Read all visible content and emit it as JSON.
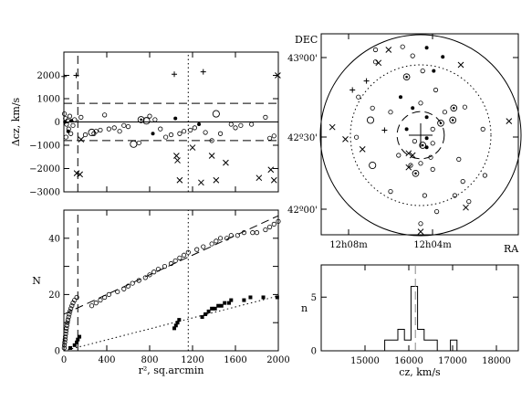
{
  "chart_data": [
    {
      "id": "velocity",
      "type": "scatter",
      "ylabel": "Δcz, km/s",
      "ylim": [
        -3000,
        3000
      ],
      "xlim": [
        0,
        2000
      ],
      "yticks": [
        -3000,
        -2000,
        -1000,
        0,
        1000,
        2000
      ],
      "ytick_labels": [
        "−3000",
        "−2000",
        "−1000",
        "0",
        "1000",
        "2000"
      ],
      "hlines": [
        {
          "y": 0,
          "style": "solid"
        },
        {
          "y": 800,
          "style": "dashed"
        },
        {
          "y": -800,
          "style": "dashed"
        }
      ],
      "vlines": [
        {
          "x": 130,
          "style": "dashed"
        },
        {
          "x": 1160,
          "style": "dotted"
        }
      ],
      "points": [
        {
          "x": 2,
          "y": 1950,
          "m": "plus"
        },
        {
          "x": 115,
          "y": 2000,
          "m": "plus"
        },
        {
          "x": 1030,
          "y": 2050,
          "m": "plus"
        },
        {
          "x": 1300,
          "y": 2150,
          "m": "plus"
        },
        {
          "x": 5,
          "y": 350,
          "m": "circle"
        },
        {
          "x": 15,
          "y": 150,
          "m": "circle"
        },
        {
          "x": 25,
          "y": -100,
          "m": "circle"
        },
        {
          "x": 35,
          "y": 50,
          "m": "circle"
        },
        {
          "x": 45,
          "y": -300,
          "m": "circle"
        },
        {
          "x": 55,
          "y": 250,
          "m": "circle"
        },
        {
          "x": 65,
          "y": -500,
          "m": "circle"
        },
        {
          "x": 85,
          "y": -150,
          "m": "circle"
        },
        {
          "x": 100,
          "y": 100,
          "m": "circle"
        },
        {
          "x": 20,
          "y": -650,
          "m": "circle"
        },
        {
          "x": 160,
          "y": 200,
          "m": "circle"
        },
        {
          "x": 200,
          "y": -550,
          "m": "circle"
        },
        {
          "x": 260,
          "y": -450,
          "m": "big"
        },
        {
          "x": 280,
          "y": -500,
          "m": "circle"
        },
        {
          "x": 300,
          "y": -400,
          "m": "circle"
        },
        {
          "x": 340,
          "y": -350,
          "m": "circle"
        },
        {
          "x": 380,
          "y": 300,
          "m": "circle"
        },
        {
          "x": 420,
          "y": -300,
          "m": "circle"
        },
        {
          "x": 470,
          "y": -250,
          "m": "circle"
        },
        {
          "x": 520,
          "y": -400,
          "m": "circle"
        },
        {
          "x": 560,
          "y": -150,
          "m": "circle"
        },
        {
          "x": 600,
          "y": -200,
          "m": "circle"
        },
        {
          "x": 650,
          "y": -950,
          "m": "big"
        },
        {
          "x": 700,
          "y": -900,
          "m": "circle"
        },
        {
          "x": 720,
          "y": 100,
          "m": "target"
        },
        {
          "x": 770,
          "y": 50,
          "m": "big"
        },
        {
          "x": 800,
          "y": 250,
          "m": "circle"
        },
        {
          "x": 830,
          "y": -500,
          "m": "dot"
        },
        {
          "x": 850,
          "y": 100,
          "m": "circle"
        },
        {
          "x": 900,
          "y": -300,
          "m": "circle"
        },
        {
          "x": 950,
          "y": -650,
          "m": "circle"
        },
        {
          "x": 1000,
          "y": -550,
          "m": "circle"
        },
        {
          "x": 1040,
          "y": 150,
          "m": "dot"
        },
        {
          "x": 1080,
          "y": -500,
          "m": "circle"
        },
        {
          "x": 1120,
          "y": -400,
          "m": "circle"
        },
        {
          "x": 1180,
          "y": -350,
          "m": "circle"
        },
        {
          "x": 1220,
          "y": -250,
          "m": "circle"
        },
        {
          "x": 1260,
          "y": -100,
          "m": "dot"
        },
        {
          "x": 1320,
          "y": -450,
          "m": "circle"
        },
        {
          "x": 1380,
          "y": -800,
          "m": "circle"
        },
        {
          "x": 1420,
          "y": 350,
          "m": "big"
        },
        {
          "x": 1460,
          "y": -500,
          "m": "circle"
        },
        {
          "x": 1560,
          "y": -100,
          "m": "circle"
        },
        {
          "x": 1600,
          "y": -250,
          "m": "circle"
        },
        {
          "x": 1650,
          "y": -150,
          "m": "circle"
        },
        {
          "x": 1750,
          "y": -100,
          "m": "circle"
        },
        {
          "x": 1880,
          "y": 200,
          "m": "circle"
        },
        {
          "x": 1920,
          "y": -700,
          "m": "circle"
        },
        {
          "x": 1960,
          "y": -600,
          "m": "circle"
        },
        {
          "x": 10,
          "y": 0,
          "m": "dot"
        },
        {
          "x": 40,
          "y": -400,
          "m": "dot"
        },
        {
          "x": 70,
          "y": 50,
          "m": "dot"
        },
        {
          "x": 120,
          "y": -2200,
          "m": "cross"
        },
        {
          "x": 150,
          "y": -2250,
          "m": "cross"
        },
        {
          "x": 160,
          "y": -750,
          "m": "cross"
        },
        {
          "x": 1050,
          "y": -1450,
          "m": "cross"
        },
        {
          "x": 1060,
          "y": -1650,
          "m": "cross"
        },
        {
          "x": 1080,
          "y": -2500,
          "m": "cross"
        },
        {
          "x": 1200,
          "y": -1100,
          "m": "cross"
        },
        {
          "x": 1280,
          "y": -2600,
          "m": "cross"
        },
        {
          "x": 1380,
          "y": -1450,
          "m": "cross"
        },
        {
          "x": 1420,
          "y": -2500,
          "m": "cross"
        },
        {
          "x": 1510,
          "y": -1750,
          "m": "cross"
        },
        {
          "x": 1820,
          "y": -2400,
          "m": "cross"
        },
        {
          "x": 1930,
          "y": -2050,
          "m": "cross"
        },
        {
          "x": 1960,
          "y": -2500,
          "m": "cross"
        },
        {
          "x": 1995,
          "y": 2000,
          "m": "cross"
        }
      ]
    },
    {
      "id": "cumulative",
      "type": "scatter",
      "xlabel": "r², sq.arcmin",
      "ylabel": "N",
      "xlim": [
        0,
        2000
      ],
      "ylim": [
        0,
        50
      ],
      "xticks": [
        0,
        400,
        800,
        1200,
        1600,
        2000
      ],
      "xtick_labels": [
        "0",
        "400",
        "800",
        "1200",
        "1600",
        "2000"
      ],
      "yticks": [
        0,
        20,
        40
      ],
      "ytick_labels": [
        "0",
        "20",
        "40"
      ],
      "vlines": [
        {
          "x": 130,
          "style": "dashed"
        },
        {
          "x": 1160,
          "style": "dotted"
        }
      ],
      "lines": [
        {
          "x": [
            0,
            2000
          ],
          "y": [
            13,
            48
          ],
          "style": "dashed"
        },
        {
          "x": [
            0,
            2000
          ],
          "y": [
            0,
            19.5
          ],
          "style": "dotted"
        }
      ],
      "series": [
        {
          "marker": "circle",
          "x": [
            3,
            5,
            8,
            11,
            14,
            17,
            20,
            24,
            28,
            33,
            38,
            44,
            50,
            57,
            65,
            75,
            85,
            100,
            120,
            260,
            300,
            340,
            380,
            420,
            500,
            560,
            600,
            640,
            700,
            760,
            800,
            840,
            880,
            940,
            1000,
            1040,
            1080,
            1120,
            1160,
            1240,
            1300,
            1380,
            1420,
            1460,
            1520,
            1560,
            1620,
            1680,
            1760,
            1800,
            1880,
            1920,
            1960,
            2000
          ],
          "y": [
            1,
            2,
            3,
            4,
            5,
            6,
            7,
            8,
            9,
            10,
            11,
            12,
            13,
            14,
            15,
            16,
            17,
            18,
            19,
            16,
            17,
            18,
            19,
            20,
            21,
            22,
            23,
            24,
            25,
            26,
            27,
            28,
            29,
            30,
            31,
            32,
            33,
            34,
            35,
            36,
            37,
            38,
            39,
            40,
            40,
            41,
            41,
            42,
            42,
            42,
            43,
            44,
            45,
            46
          ]
        },
        {
          "marker": "filled",
          "x": [
            60,
            100,
            120,
            130,
            145,
            1030,
            1045,
            1060,
            1075,
            1290,
            1320,
            1350,
            1380,
            1410,
            1440,
            1470,
            1500,
            1540,
            1560,
            1680,
            1740,
            1860,
            1990
          ],
          "y": [
            1,
            2,
            3,
            4,
            5,
            8,
            9,
            10,
            11,
            12,
            13,
            14,
            15,
            15,
            16,
            16,
            17,
            17,
            18,
            18,
            19,
            19,
            19
          ]
        }
      ]
    },
    {
      "id": "skymap",
      "type": "scatter",
      "xlabel": "RA",
      "ylabel": "DEC",
      "ra_ticks": [
        "12h08m",
        "12h04m"
      ],
      "dec_ticks": [
        "43º00'",
        "42º30'",
        "42º00'"
      ],
      "center": [
        0,
        0
      ],
      "circles": [
        {
          "r": 1.0,
          "style": "solid"
        },
        {
          "r": 0.7,
          "style": "dotted"
        },
        {
          "r": 0.235,
          "style": "dashed"
        }
      ],
      "points": [
        {
          "x": -0.45,
          "y": 0.73,
          "m": "circle"
        },
        {
          "x": -0.18,
          "y": 0.88,
          "m": "circle"
        },
        {
          "x": -0.08,
          "y": 0.79,
          "m": "circle"
        },
        {
          "x": 0.06,
          "y": 0.87,
          "m": "dot"
        },
        {
          "x": 0.13,
          "y": 0.64,
          "m": "dot"
        },
        {
          "x": 0.22,
          "y": 0.78,
          "m": "dot"
        },
        {
          "x": -0.45,
          "y": 0.85,
          "m": "circle"
        },
        {
          "x": -0.14,
          "y": 0.58,
          "m": "target"
        },
        {
          "x": 0.02,
          "y": 0.64,
          "m": "circle"
        },
        {
          "x": -0.62,
          "y": 0.38,
          "m": "circle"
        },
        {
          "x": -0.48,
          "y": 0.27,
          "m": "circle"
        },
        {
          "x": -0.3,
          "y": 0.23,
          "m": "circle"
        },
        {
          "x": -0.5,
          "y": 0.15,
          "m": "big"
        },
        {
          "x": -0.2,
          "y": 0.38,
          "m": "dot"
        },
        {
          "x": -0.08,
          "y": 0.27,
          "m": "dot"
        },
        {
          "x": 0.0,
          "y": 0.32,
          "m": "circle"
        },
        {
          "x": 0.06,
          "y": 0.18,
          "m": "dot"
        },
        {
          "x": 0.12,
          "y": 0.06,
          "m": "circle"
        },
        {
          "x": 0.2,
          "y": 0.12,
          "m": "target"
        },
        {
          "x": 0.24,
          "y": 0.23,
          "m": "circle"
        },
        {
          "x": 0.32,
          "y": 0.15,
          "m": "target"
        },
        {
          "x": 0.33,
          "y": 0.27,
          "m": "target"
        },
        {
          "x": 0.44,
          "y": 0.28,
          "m": "circle"
        },
        {
          "x": 0.06,
          "y": -0.03,
          "m": "dot"
        },
        {
          "x": 0.02,
          "y": -0.1,
          "m": "target"
        },
        {
          "x": 0.06,
          "y": -0.12,
          "m": "dot"
        },
        {
          "x": 0.12,
          "y": -0.08,
          "m": "circle"
        },
        {
          "x": -0.14,
          "y": 0.06,
          "m": "dot"
        },
        {
          "x": -0.06,
          "y": -0.06,
          "m": "circle"
        },
        {
          "x": 0.1,
          "y": -0.22,
          "m": "circle"
        },
        {
          "x": -0.22,
          "y": -0.2,
          "m": "circle"
        },
        {
          "x": -0.1,
          "y": -0.3,
          "m": "circle"
        },
        {
          "x": -0.05,
          "y": -0.38,
          "m": "target"
        },
        {
          "x": 0.0,
          "y": -0.28,
          "m": "circle"
        },
        {
          "x": 0.12,
          "y": -0.34,
          "m": "circle"
        },
        {
          "x": 0.38,
          "y": -0.24,
          "m": "circle"
        },
        {
          "x": 0.42,
          "y": -0.46,
          "m": "circle"
        },
        {
          "x": -0.48,
          "y": -0.3,
          "m": "big"
        },
        {
          "x": -0.64,
          "y": -0.02,
          "m": "circle"
        },
        {
          "x": 0.62,
          "y": 0.06,
          "m": "circle"
        },
        {
          "x": -0.3,
          "y": -0.56,
          "m": "circle"
        },
        {
          "x": 0.04,
          "y": -0.6,
          "m": "circle"
        },
        {
          "x": 0.34,
          "y": -0.6,
          "m": "circle"
        },
        {
          "x": 0.48,
          "y": -0.66,
          "m": "circle"
        },
        {
          "x": 0.64,
          "y": -0.4,
          "m": "circle"
        },
        {
          "x": 0.16,
          "y": -0.76,
          "m": "circle"
        },
        {
          "x": 0.0,
          "y": -0.88,
          "m": "circle"
        },
        {
          "x": 0.15,
          "y": 0.45,
          "m": "circle"
        },
        {
          "x": -0.54,
          "y": 0.54,
          "m": "plus"
        },
        {
          "x": -0.68,
          "y": 0.45,
          "m": "plus"
        },
        {
          "x": -0.36,
          "y": 0.05,
          "m": "plus"
        },
        {
          "x": -0.32,
          "y": 0.85,
          "m": "cross"
        },
        {
          "x": -0.42,
          "y": 0.72,
          "m": "cross"
        },
        {
          "x": 0.4,
          "y": 0.7,
          "m": "cross"
        },
        {
          "x": -0.88,
          "y": 0.08,
          "m": "cross"
        },
        {
          "x": -0.75,
          "y": -0.04,
          "m": "cross"
        },
        {
          "x": -0.58,
          "y": -0.14,
          "m": "cross"
        },
        {
          "x": 0.88,
          "y": 0.14,
          "m": "cross"
        },
        {
          "x": -0.12,
          "y": -0.18,
          "m": "cross"
        },
        {
          "x": -0.08,
          "y": -0.2,
          "m": "cross"
        },
        {
          "x": -0.12,
          "y": -0.32,
          "m": "cross"
        },
        {
          "x": 0.45,
          "y": -0.72,
          "m": "cross"
        },
        {
          "x": 0.0,
          "y": -0.96,
          "m": "cross"
        }
      ]
    },
    {
      "id": "histogram",
      "type": "bar",
      "xlabel": "cz, km/s",
      "ylabel": "n",
      "xlim": [
        14000,
        18500
      ],
      "ylim": [
        0,
        8
      ],
      "xticks": [
        15000,
        16000,
        17000,
        18000
      ],
      "xtick_labels": [
        "15000",
        "16000",
        "17000",
        "18000"
      ],
      "yticks": [
        0,
        5
      ],
      "ytick_labels": [
        "0",
        "5"
      ],
      "bin_width": 150,
      "bins": [
        {
          "x0": 15450,
          "count": 1
        },
        {
          "x0": 15600,
          "count": 1
        },
        {
          "x0": 15750,
          "count": 2
        },
        {
          "x0": 15900,
          "count": 1
        },
        {
          "x0": 16050,
          "count": 6
        },
        {
          "x0": 16200,
          "count": 2
        },
        {
          "x0": 16350,
          "count": 1
        },
        {
          "x0": 16500,
          "count": 1
        },
        {
          "x0": 16650,
          "count": 0
        },
        {
          "x0": 16800,
          "count": 0
        },
        {
          "x0": 16950,
          "count": 1
        }
      ],
      "vline": {
        "x": 16150,
        "style": "dashed"
      }
    }
  ]
}
